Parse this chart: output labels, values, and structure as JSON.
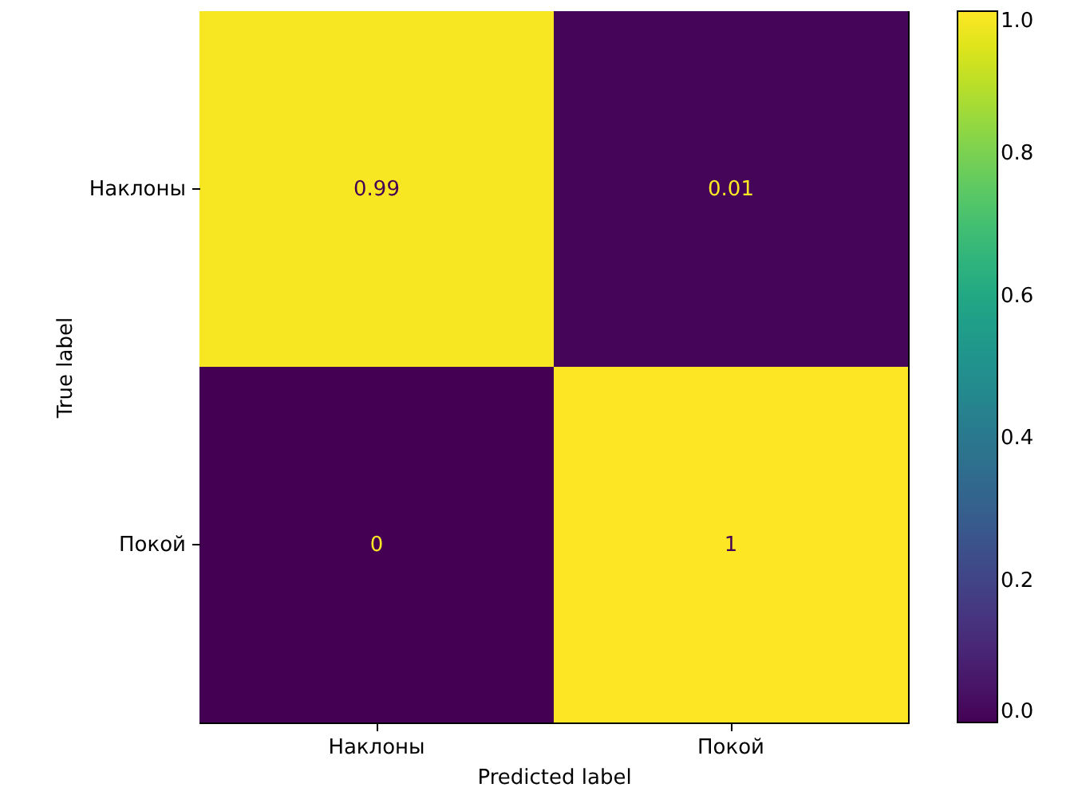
{
  "chart_data": {
    "type": "heatmap",
    "xlabel": "Predicted label",
    "ylabel": "True label",
    "categories": [
      "Наклоны",
      "Покой"
    ],
    "y_categories": [
      "Наклоны",
      "Покой"
    ],
    "cells": [
      [
        0.99,
        0.01
      ],
      [
        0,
        1
      ]
    ],
    "data_labels": true,
    "clim": [
      0,
      1
    ],
    "cticks": [
      {
        "value": 0,
        "label": "0.0"
      },
      {
        "value": 0.2,
        "label": "0.2"
      },
      {
        "value": 0.4,
        "label": "0.4"
      },
      {
        "value": 0.6,
        "label": "0.6"
      },
      {
        "value": 0.8,
        "label": "0.8"
      },
      {
        "value": 1,
        "label": "1.0"
      }
    ]
  }
}
